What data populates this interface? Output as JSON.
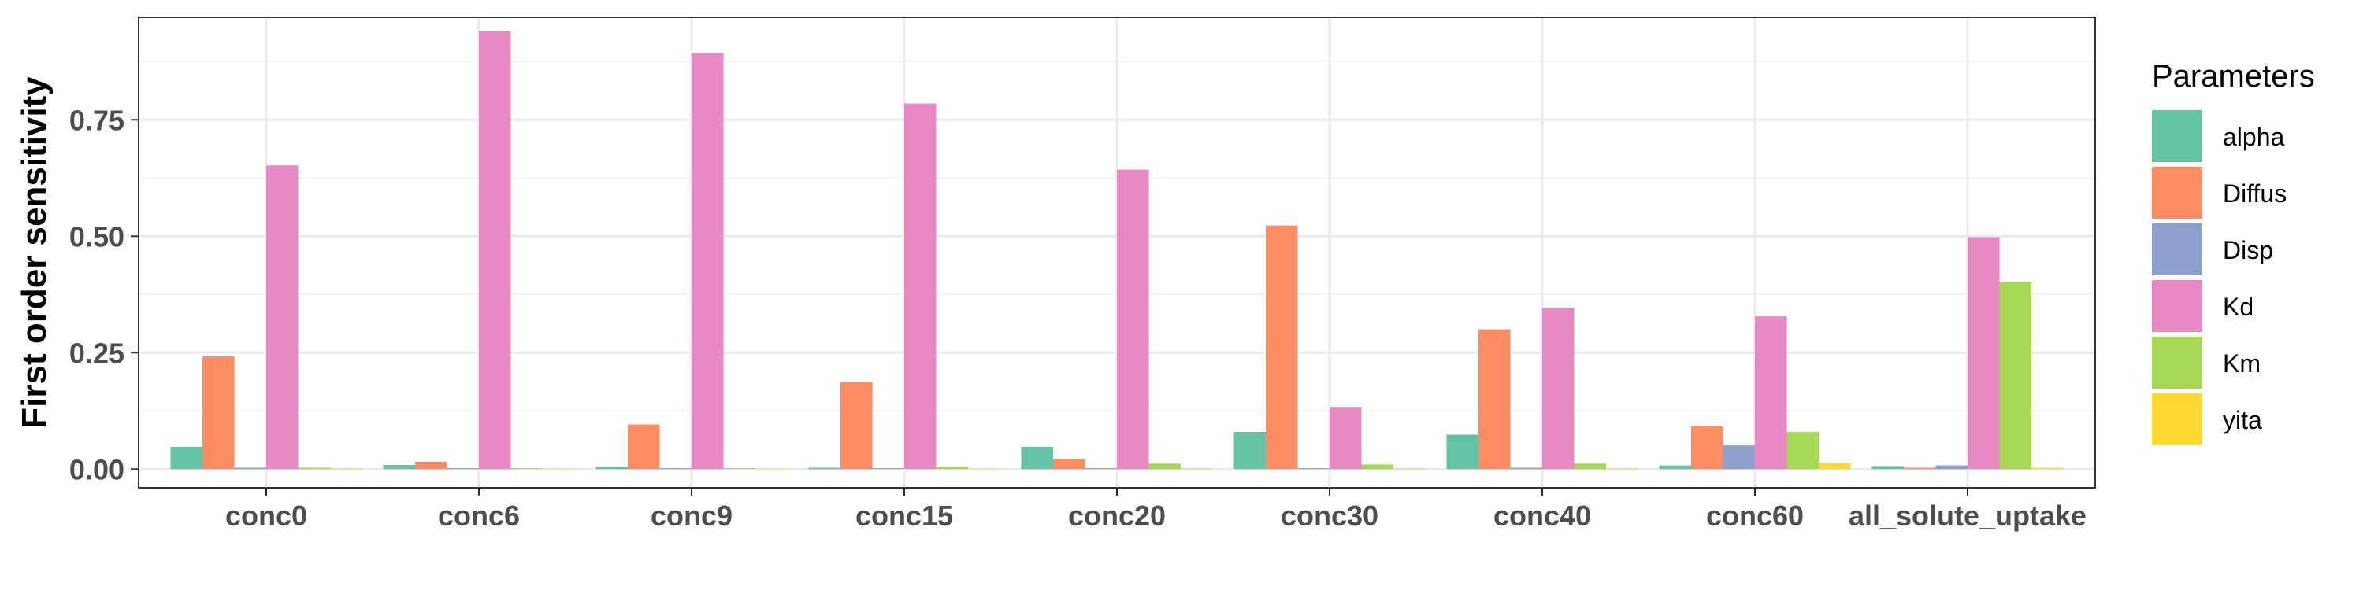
{
  "chart_data": {
    "type": "bar",
    "title": "",
    "xlabel": "",
    "ylabel": "First order sensitivity",
    "ylim": [
      -0.04,
      0.97
    ],
    "yticks": [
      0.0,
      0.25,
      0.5,
      0.75
    ],
    "ytick_labels": [
      "0.00",
      "0.25",
      "0.50",
      "0.75"
    ],
    "categories": [
      "conc0",
      "conc6",
      "conc9",
      "conc15",
      "conc20",
      "conc30",
      "conc40",
      "conc60",
      "all_solute_uptake"
    ],
    "grid": true,
    "legend": {
      "title": "Parameters",
      "position": "right"
    },
    "series": [
      {
        "name": "alpha",
        "color": "#66C2A5",
        "values": [
          0.048,
          0.009,
          0.004,
          0.003,
          0.048,
          0.08,
          0.074,
          0.008,
          0.005
        ]
      },
      {
        "name": "Diffus",
        "color": "#FC8D62",
        "values": [
          0.242,
          0.016,
          0.096,
          0.187,
          0.022,
          0.523,
          0.3,
          0.092,
          0.003
        ]
      },
      {
        "name": "Disp",
        "color": "#8DA0CB",
        "values": [
          0.003,
          0.002,
          0.002,
          0.002,
          0.002,
          0.002,
          0.003,
          0.051,
          0.008
        ]
      },
      {
        "name": "Kd",
        "color": "#E78AC3",
        "values": [
          0.652,
          0.94,
          0.893,
          0.785,
          0.643,
          0.132,
          0.346,
          0.328,
          0.498
        ]
      },
      {
        "name": "Km",
        "color": "#A6D854",
        "values": [
          0.003,
          0.002,
          0.002,
          0.004,
          0.012,
          0.01,
          0.012,
          0.08,
          0.402
        ]
      },
      {
        "name": "yita",
        "color": "#FFD92F",
        "values": [
          0.002,
          0.001,
          0.001,
          0.001,
          0.002,
          0.002,
          0.002,
          0.013,
          0.003
        ]
      }
    ]
  }
}
